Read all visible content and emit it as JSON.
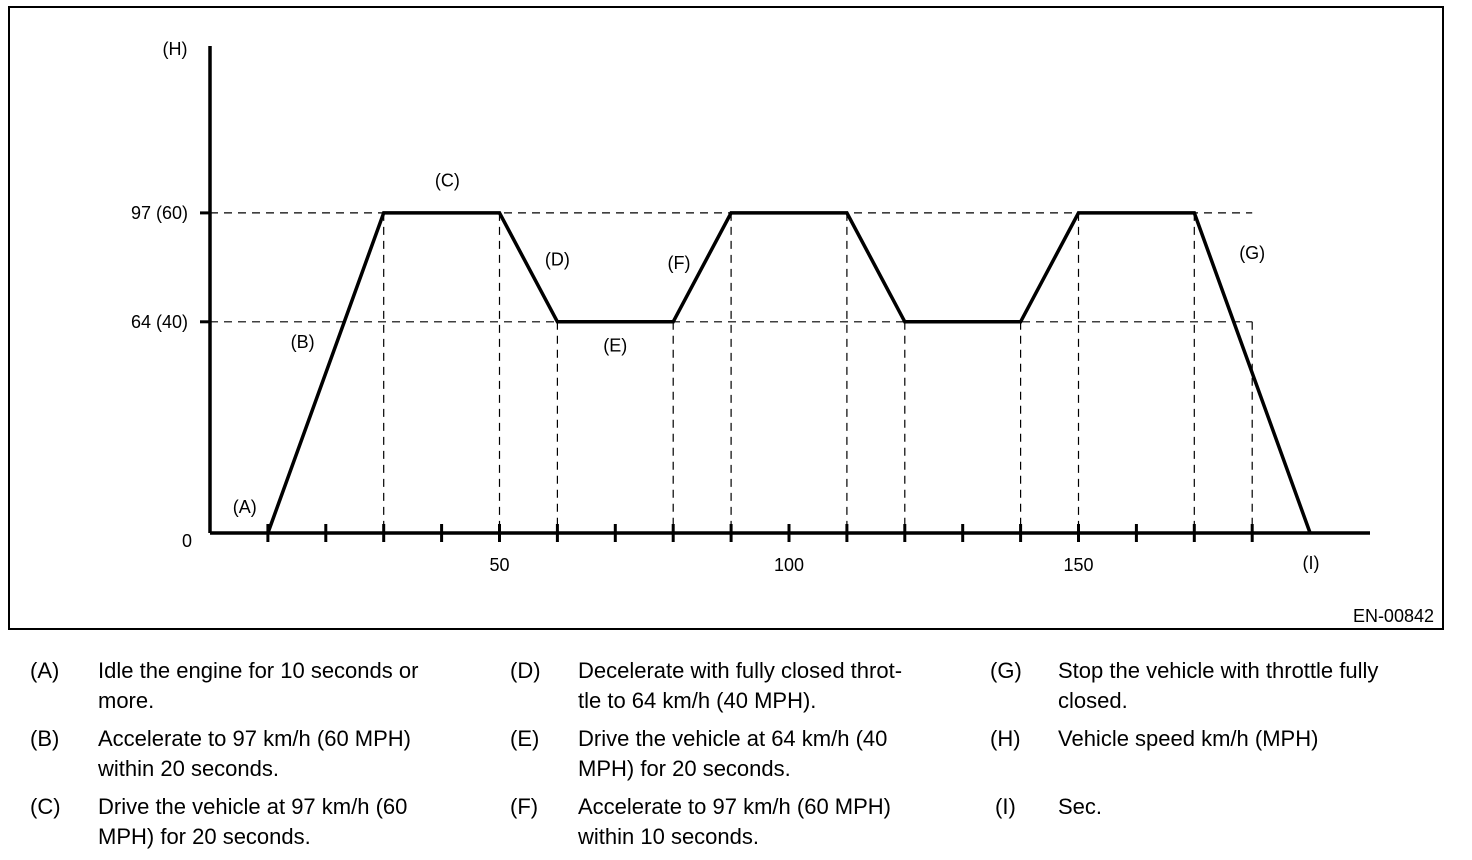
{
  "chart_data": {
    "type": "line",
    "y_axis_marker": "(H)",
    "x_axis_marker": "(I)",
    "figure_code": "EN-00842",
    "y_ticks": [
      {
        "value": 0,
        "label": "0"
      },
      {
        "value": 64,
        "label": "64 (40)"
      },
      {
        "value": 97,
        "label": "97 (60)"
      }
    ],
    "x_ticks": [
      10,
      20,
      30,
      40,
      50,
      60,
      70,
      80,
      90,
      100,
      110,
      120,
      130,
      140,
      150,
      160,
      170,
      180
    ],
    "x_tick_labels": [
      {
        "value": 50,
        "label": "50"
      },
      {
        "value": 100,
        "label": "100"
      },
      {
        "value": 150,
        "label": "150"
      }
    ],
    "xlim": [
      0,
      200
    ],
    "ylim": [
      0,
      150
    ],
    "series": [
      {
        "x": [
          10,
          30,
          50,
          60,
          80,
          90,
          110,
          120,
          140,
          150,
          170,
          190
        ],
        "y": [
          0,
          97,
          97,
          64,
          64,
          97,
          97,
          64,
          64,
          97,
          97,
          0
        ]
      }
    ],
    "guide_lines_x": [
      30,
      50,
      60,
      80,
      90,
      110,
      120,
      140,
      150,
      170,
      180
    ],
    "guide_lines_y": [
      64,
      97
    ],
    "annotations": [
      {
        "text": "(A)",
        "x": 6,
        "y": 6
      },
      {
        "text": "(B)",
        "x": 16,
        "y": 56
      },
      {
        "text": "(C)",
        "x": 41,
        "y": 105
      },
      {
        "text": "(D)",
        "x": 60,
        "y": 81
      },
      {
        "text": "(E)",
        "x": 70,
        "y": 55
      },
      {
        "text": "(F)",
        "x": 81,
        "y": 80
      },
      {
        "text": "(G)",
        "x": 180,
        "y": 83
      }
    ]
  },
  "legend": [
    {
      "code": "(A)",
      "lines": [
        "Idle the engine for 10 seconds or",
        "more."
      ]
    },
    {
      "code": "(B)",
      "lines": [
        "Accelerate to 97 km/h (60 MPH)",
        "within 20 seconds."
      ]
    },
    {
      "code": "(C)",
      "lines": [
        "Drive the vehicle at 97 km/h (60",
        "MPH) for 20 seconds."
      ]
    },
    {
      "code": "(D)",
      "lines": [
        "Decelerate with fully closed throt-",
        "tle to 64 km/h (40 MPH)."
      ]
    },
    {
      "code": "(E)",
      "lines": [
        "Drive the vehicle at 64 km/h (40",
        "MPH) for 20 seconds."
      ]
    },
    {
      "code": "(F)",
      "lines": [
        "Accelerate to 97 km/h (60 MPH)",
        "within 10 seconds."
      ]
    },
    {
      "code": "(G)",
      "lines": [
        "Stop the vehicle with throttle fully",
        "closed."
      ]
    },
    {
      "code": "(H)",
      "lines": [
        "Vehicle speed km/h (MPH)"
      ]
    },
    {
      "code": "(I)",
      "lines": [
        "Sec."
      ]
    }
  ]
}
